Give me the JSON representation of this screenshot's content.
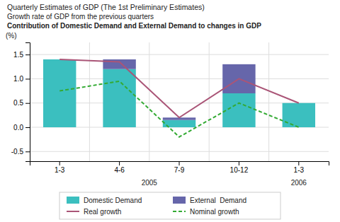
{
  "chart_data": {
    "type": "bar",
    "title": "Quarterly Estimates of GDP (The 1st Preliminary Estimates)",
    "subtitle": [
      "Growth rate of GDP from the previous quarters",
      "Contribution of Domestic Demand and External Demand to changes in GDP"
    ],
    "ylabel": "(%)",
    "categories": [
      "1-3",
      "4-6",
      "7-9",
      "10-12",
      "1-3"
    ],
    "series": [
      {
        "name": "Domestic Demand",
        "type": "bar",
        "color": "#3bbfbf",
        "values": [
          1.4,
          1.2,
          0.15,
          0.7,
          0.5
        ]
      },
      {
        "name": "External  Demand",
        "type": "bar",
        "color": "#6666aa",
        "values": [
          0.0,
          0.2,
          0.05,
          0.6,
          0.0
        ]
      },
      {
        "name": "Real growth",
        "type": "line",
        "color": "#aa5577",
        "line_style": "solid",
        "values": [
          1.4,
          1.35,
          0.2,
          1.0,
          0.5
        ]
      },
      {
        "name": "Nominal growth",
        "type": "line",
        "color": "#33aa33",
        "line_style": "dashed",
        "values": [
          0.75,
          0.95,
          -0.2,
          0.5,
          0.0
        ]
      }
    ],
    "annotations": [
      {
        "text": "2005",
        "x": 1.5
      },
      {
        "text": "2006",
        "x": 4.0
      }
    ],
    "stacked": true,
    "ylim": [
      -0.7,
      1.75
    ],
    "yticks": [
      -0.5,
      {
        "value": 0,
        "label": "0.0"
      },
      0.5,
      {
        "value": 1,
        "label": "1.0"
      },
      1.5
    ],
    "grid": true,
    "legend": "bottom"
  }
}
